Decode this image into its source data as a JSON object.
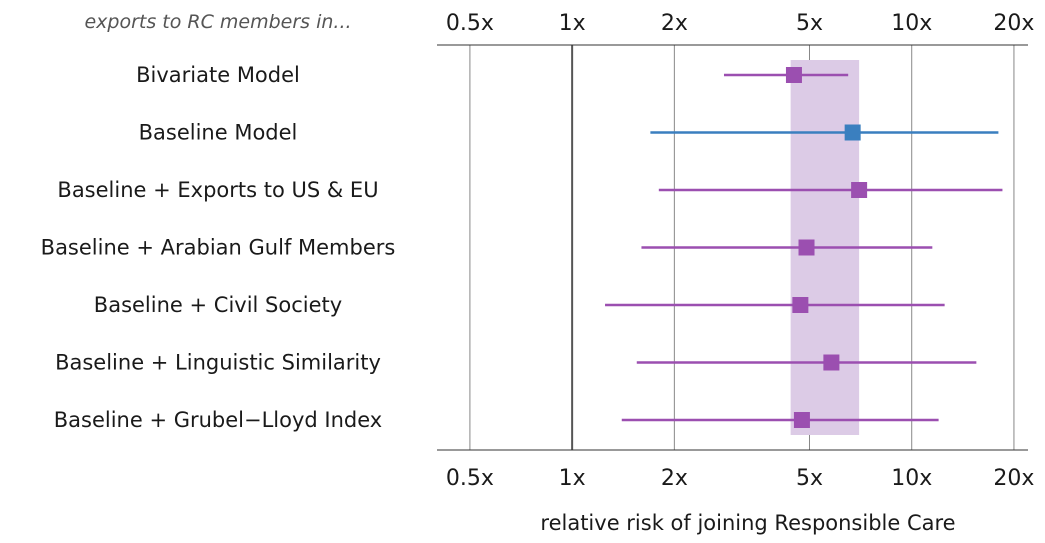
{
  "chart_data": {
    "type": "forest",
    "subtitle": "exports to RC members in...",
    "xlabel": "relative risk of joining Responsible Care",
    "x_scale": "log",
    "xlim": [
      0.4,
      22
    ],
    "ticks": [
      {
        "value": 0.5,
        "label": "0.5x"
      },
      {
        "value": 1,
        "label": "1x"
      },
      {
        "value": 2,
        "label": "2x"
      },
      {
        "value": 5,
        "label": "5x"
      },
      {
        "value": 10,
        "label": "10x"
      },
      {
        "value": 20,
        "label": "20x"
      }
    ],
    "reference_value": 1,
    "band": {
      "low": 4.4,
      "high": 7.0,
      "color": "#dccbe6"
    },
    "colors": {
      "purple": "#9b4fb0",
      "blue": "#3a7fbf",
      "grid": "#888888",
      "ref_line": "#555555"
    },
    "rows": [
      {
        "label": "Bivariate Model",
        "estimate": 4.5,
        "low": 2.8,
        "high": 6.5,
        "color": "purple"
      },
      {
        "label": "Baseline Model",
        "estimate": 6.7,
        "low": 1.7,
        "high": 18.0,
        "color": "blue"
      },
      {
        "label": "Baseline + Exports to US & EU",
        "estimate": 7.0,
        "low": 1.8,
        "high": 18.5,
        "color": "purple"
      },
      {
        "label": "Baseline + Arabian Gulf Members",
        "estimate": 4.9,
        "low": 1.6,
        "high": 11.5,
        "color": "purple"
      },
      {
        "label": "Baseline + Civil Society",
        "estimate": 4.7,
        "low": 1.25,
        "high": 12.5,
        "color": "purple"
      },
      {
        "label": "Baseline + Linguistic Similarity",
        "estimate": 5.8,
        "low": 1.55,
        "high": 15.5,
        "color": "purple"
      },
      {
        "label": "Baseline + Grubel−Lloyd Index",
        "estimate": 4.75,
        "low": 1.4,
        "high": 12.0,
        "color": "purple"
      }
    ]
  }
}
